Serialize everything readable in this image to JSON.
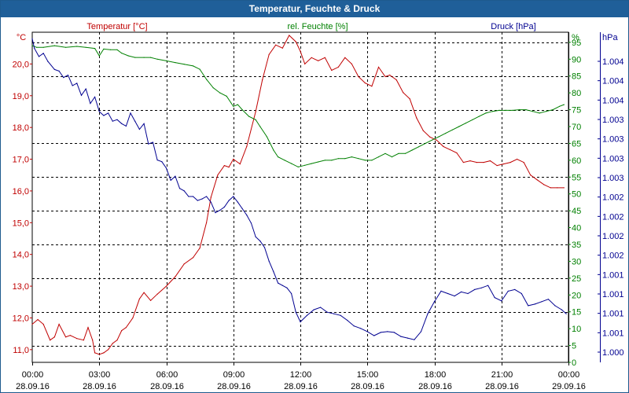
{
  "chart_data": {
    "type": "line",
    "title": "Temperatur, Feuchte & Druck",
    "x_ticks": [
      {
        "time": "00:00",
        "date": "28.09.16"
      },
      {
        "time": "03:00",
        "date": "28.09.16"
      },
      {
        "time": "06:00",
        "date": "28.09.16"
      },
      {
        "time": "09:00",
        "date": "28.09.16"
      },
      {
        "time": "12:00",
        "date": "28.09.16"
      },
      {
        "time": "15:00",
        "date": "28.09.16"
      },
      {
        "time": "18:00",
        "date": "28.09.16"
      },
      {
        "time": "21:00",
        "date": "28.09.16"
      },
      {
        "time": "00:00",
        "date": "29.09.16"
      }
    ],
    "xlim_hours": [
      0,
      24
    ],
    "axes": {
      "temperature": {
        "label": "Temperatur [°C]",
        "unit": "°C",
        "color": "#c00000",
        "ylim": [
          10.6,
          21.0
        ],
        "ticks": [
          "11,0",
          "12,0",
          "13,0",
          "14,0",
          "15,0",
          "16,0",
          "17,0",
          "18,0",
          "19,0",
          "20,0"
        ]
      },
      "humidity": {
        "label": "rel. Feuchte [%]",
        "unit": "%",
        "color": "#008000",
        "ylim": [
          0,
          98
        ],
        "ticks": [
          "0",
          "5",
          "10",
          "15",
          "20",
          "25",
          "30",
          "35",
          "40",
          "45",
          "50",
          "55",
          "60",
          "65",
          "70",
          "75",
          "80",
          "85",
          "90",
          "95"
        ]
      },
      "pressure": {
        "label": "Druck [hPa]",
        "unit": "hPa",
        "color": "#000090",
        "ylim": [
          1000.0,
          1004.08
        ],
        "ticks": [
          "1.000",
          "1.001",
          "1.001",
          "1.001",
          "1.001",
          "1.002",
          "1.002",
          "1.002",
          "1.002",
          "1.003",
          "1.003",
          "1.003",
          "1.003",
          "1.004",
          "1.004",
          "1.004"
        ]
      }
    },
    "series": [
      {
        "name": "Temperatur",
        "axis": "temperature",
        "color": "#c00000",
        "x": [
          0,
          0.25,
          0.5,
          0.8,
          1.0,
          1.2,
          1.5,
          1.7,
          2.0,
          2.3,
          2.5,
          2.7,
          2.8,
          3.0,
          3.2,
          3.4,
          3.6,
          3.8,
          4.0,
          4.2,
          4.5,
          4.8,
          5.0,
          5.3,
          5.6,
          6.0,
          6.4,
          6.8,
          7.2,
          7.5,
          7.8,
          8.0,
          8.3,
          8.6,
          8.8,
          9.0,
          9.3,
          9.6,
          10.0,
          10.3,
          10.6,
          10.9,
          11.2,
          11.5,
          11.8,
          12.0,
          12.2,
          12.5,
          12.8,
          13.1,
          13.4,
          13.7,
          14.0,
          14.3,
          14.6,
          14.9,
          15.2,
          15.5,
          15.8,
          16.0,
          16.3,
          16.6,
          16.9,
          17.2,
          17.5,
          17.8,
          18.1,
          18.4,
          18.7,
          19.0,
          19.3,
          19.6,
          19.9,
          20.2,
          20.5,
          20.8,
          21.1,
          21.4,
          21.7,
          22.0,
          22.3,
          22.6,
          22.9,
          23.2,
          23.5,
          23.8
        ],
        "values": [
          11.8,
          11.95,
          11.8,
          11.3,
          11.4,
          11.8,
          11.4,
          11.45,
          11.35,
          11.3,
          11.7,
          11.3,
          10.9,
          10.85,
          10.9,
          11.0,
          11.2,
          11.3,
          11.6,
          11.7,
          12.0,
          12.6,
          12.8,
          12.55,
          12.75,
          13.0,
          13.3,
          13.7,
          13.9,
          14.2,
          15.0,
          15.8,
          16.5,
          16.8,
          16.75,
          17.0,
          16.85,
          17.4,
          18.5,
          19.5,
          20.3,
          20.6,
          20.5,
          20.9,
          20.7,
          20.4,
          20.0,
          20.2,
          20.1,
          20.2,
          19.8,
          19.9,
          20.2,
          20.0,
          19.6,
          19.4,
          19.3,
          19.9,
          19.6,
          19.65,
          19.5,
          19.1,
          18.9,
          18.3,
          17.9,
          17.7,
          17.6,
          17.4,
          17.3,
          17.2,
          16.9,
          16.95,
          16.9,
          16.9,
          16.95,
          16.8,
          16.85,
          16.9,
          17.0,
          16.9,
          16.5,
          16.35,
          16.2,
          16.1,
          16.1,
          16.1
        ]
      },
      {
        "name": "rel. Feuchte",
        "axis": "humidity",
        "color": "#008000",
        "x": [
          0,
          0.2,
          0.5,
          1.0,
          1.5,
          2.0,
          2.4,
          2.8,
          3.0,
          3.2,
          3.5,
          3.8,
          4.0,
          4.3,
          4.6,
          5.0,
          5.3,
          5.6,
          6.0,
          6.4,
          6.8,
          7.2,
          7.5,
          7.8,
          8.1,
          8.4,
          8.7,
          9.0,
          9.2,
          9.4,
          9.7,
          10.0,
          10.2,
          10.5,
          10.8,
          11.0,
          11.3,
          11.6,
          11.9,
          12.2,
          12.5,
          12.8,
          13.1,
          13.4,
          13.7,
          14.0,
          14.3,
          14.6,
          14.9,
          15.2,
          15.5,
          15.8,
          16.1,
          16.4,
          16.7,
          17.0,
          17.3,
          17.6,
          17.9,
          18.2,
          18.5,
          18.8,
          19.1,
          19.4,
          19.7,
          20.0,
          20.3,
          20.6,
          20.9,
          21.2,
          21.5,
          21.8,
          22.1,
          22.4,
          22.7,
          23.0,
          23.3,
          23.6,
          23.8
        ],
        "values": [
          94,
          93.5,
          93.5,
          94,
          93.5,
          93.8,
          93.5,
          93.2,
          91,
          93,
          92.8,
          92.8,
          91.8,
          91,
          90.5,
          90.5,
          90.5,
          90,
          89.5,
          89,
          88.5,
          88,
          87,
          84,
          81.5,
          80,
          79,
          76,
          76.5,
          75,
          73,
          72,
          70,
          67,
          63,
          61,
          60,
          59,
          58,
          58.5,
          59,
          59.5,
          60,
          60,
          60.5,
          60.5,
          61,
          60.5,
          60,
          60,
          61,
          62,
          61,
          62,
          62,
          63,
          64,
          65,
          66,
          67,
          68,
          69,
          70,
          71,
          72,
          73,
          74,
          74.5,
          74.8,
          74.8,
          74.8,
          75,
          75,
          74.5,
          74,
          74.5,
          75,
          76,
          76.5
        ]
      },
      {
        "name": "Druck",
        "axis": "pressure",
        "color": "#000090",
        "x": [
          0,
          0.1,
          0.3,
          0.5,
          0.7,
          1.0,
          1.2,
          1.4,
          1.6,
          1.8,
          2.0,
          2.2,
          2.4,
          2.6,
          2.8,
          3.0,
          3.2,
          3.4,
          3.6,
          3.8,
          4.0,
          4.2,
          4.4,
          4.6,
          4.8,
          5.0,
          5.2,
          5.4,
          5.6,
          5.8,
          6.0,
          6.2,
          6.4,
          6.6,
          6.8,
          7.0,
          7.2,
          7.4,
          7.6,
          7.8,
          8.0,
          8.2,
          8.4,
          8.6,
          8.8,
          9.0,
          9.2,
          9.4,
          9.6,
          9.8,
          10.0,
          10.2,
          10.4,
          10.6,
          10.8,
          11.0,
          11.2,
          11.4,
          11.6,
          11.8,
          12.0,
          12.3,
          12.6,
          12.9,
          13.2,
          13.5,
          13.8,
          14.1,
          14.4,
          14.7,
          15.0,
          15.3,
          15.6,
          15.9,
          16.2,
          16.5,
          16.8,
          17.1,
          17.4,
          17.7,
          18.0,
          18.3,
          18.6,
          18.9,
          19.2,
          19.5,
          19.8,
          20.1,
          20.4,
          20.7,
          21.0,
          21.3,
          21.6,
          21.9,
          22.2,
          22.5,
          22.8,
          23.1,
          23.4,
          23.7,
          23.9
        ],
        "values": [
          1004.0,
          1003.88,
          1003.78,
          1003.82,
          1003.72,
          1003.62,
          1003.6,
          1003.52,
          1003.55,
          1003.42,
          1003.45,
          1003.3,
          1003.38,
          1003.2,
          1003.28,
          1003.1,
          1003.05,
          1003.08,
          1002.98,
          1003.0,
          1002.95,
          1002.92,
          1003.08,
          1002.98,
          1002.88,
          1002.95,
          1002.7,
          1002.72,
          1002.5,
          1002.48,
          1002.4,
          1002.25,
          1002.3,
          1002.15,
          1002.12,
          1002.05,
          1002.05,
          1002.0,
          1002.02,
          1002.05,
          1001.98,
          1001.85,
          1001.88,
          1001.92,
          1002.0,
          1002.05,
          1001.98,
          1001.9,
          1001.82,
          1001.72,
          1001.55,
          1001.5,
          1001.42,
          1001.25,
          1001.12,
          1000.98,
          1000.95,
          1000.92,
          1000.85,
          1000.62,
          1000.5,
          1000.58,
          1000.65,
          1000.68,
          1000.62,
          1000.6,
          1000.58,
          1000.52,
          1000.45,
          1000.42,
          1000.38,
          1000.33,
          1000.37,
          1000.38,
          1000.37,
          1000.32,
          1000.3,
          1000.28,
          1000.38,
          1000.6,
          1000.75,
          1000.88,
          1000.85,
          1000.82,
          1000.87,
          1000.85,
          1000.9,
          1000.92,
          1000.95,
          1000.8,
          1000.76,
          1000.88,
          1000.9,
          1000.85,
          1000.7,
          1000.72,
          1000.75,
          1000.78,
          1000.7,
          1000.65,
          1000.6
        ]
      }
    ]
  }
}
